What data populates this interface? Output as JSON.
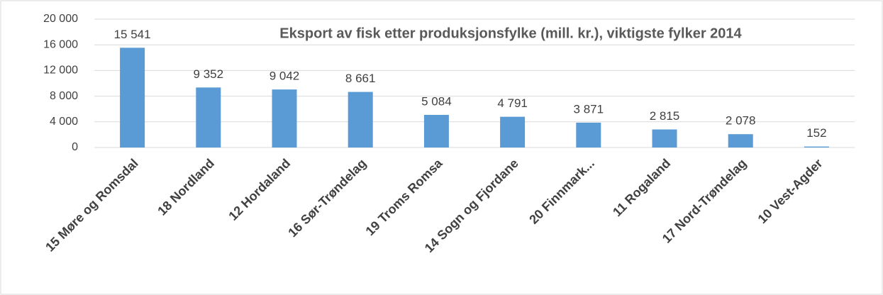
{
  "chart_data": {
    "type": "bar",
    "title": "Eksport av fisk etter produksjonsfylke (mill. kr.), viktigste fylker 2014",
    "categories": [
      "15 Møre og Romsdal",
      "18 Nordland",
      "12 Hordaland",
      "16 Sør-Trøndelag",
      "19 Troms Romsa",
      "14 Sogn og Fjordane",
      "20 Finnmark...",
      "11 Rogaland",
      "17 Nord-Trøndelag",
      "10 Vest-Agder"
    ],
    "values": [
      15541,
      9352,
      9042,
      8661,
      5084,
      4791,
      3871,
      2815,
      2078,
      152
    ],
    "value_labels": [
      "15 541",
      "9 352",
      "9 042",
      "8 661",
      "5 084",
      "4 791",
      "3 871",
      "2 815",
      "2 078",
      "152"
    ],
    "color": "#5b9bd5",
    "ylim": [
      0,
      20000
    ],
    "yticks": [
      0,
      {
        "value": 4000,
        "label": "4 000"
      },
      {
        "value": 8000,
        "label": "8 000"
      },
      {
        "value": 12000,
        "label": "12 000"
      },
      {
        "value": 16000,
        "label": "16 000"
      },
      {
        "value": 20000,
        "label": "20 000"
      }
    ],
    "grid": true
  }
}
